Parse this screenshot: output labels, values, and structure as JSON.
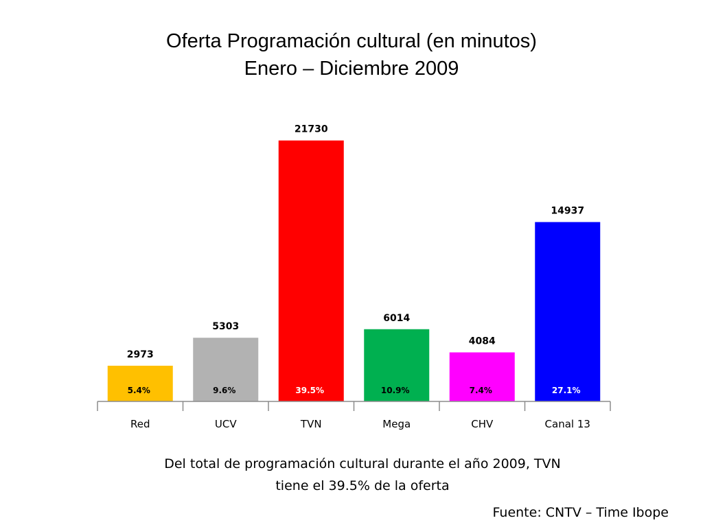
{
  "slide": {
    "title_line1": "Oferta Programación cultural (en minutos)",
    "title_line2": "Enero – Diciembre 2009",
    "caption_line1": "Del total de programación cultural durante el año 2009, TVN",
    "caption_line2": "tiene el 39.5% de la oferta",
    "source": "Fuente: CNTV – Time Ibope"
  },
  "chart_data": {
    "type": "bar",
    "categories": [
      "Red",
      "UCV",
      "TVN",
      "Mega",
      "CHV",
      "Canal 13"
    ],
    "values": [
      2973,
      5303,
      21730,
      6014,
      4084,
      14937
    ],
    "percent_labels": [
      "5.4%",
      "9.6%",
      "39.5%",
      "10.9%",
      "7.4%",
      "27.1%"
    ],
    "colors": [
      "#FFC000",
      "#B2B2B2",
      "#FF0000",
      "#00B050",
      "#FF00FF",
      "#0000FF"
    ],
    "percent_label_colors": [
      "#000000",
      "#000000",
      "#FFFFFF",
      "#000000",
      "#000000",
      "#FFFFFF"
    ],
    "title": "",
    "xlabel": "",
    "ylabel": "",
    "ylim": [
      0,
      24000
    ],
    "grid": false,
    "legend": "none"
  }
}
